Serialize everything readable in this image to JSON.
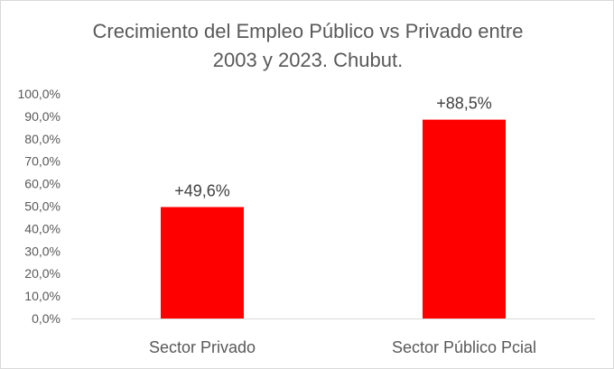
{
  "chart_data": {
    "type": "bar",
    "title_lines": [
      "Crecimiento del Empleo Público vs Privado entre",
      "2003 y 2023. Chubut."
    ],
    "categories": [
      "Sector Privado",
      "Sector Público Pcial"
    ],
    "values": [
      49.6,
      88.5
    ],
    "data_labels": [
      "+49,6%",
      "+88,5%"
    ],
    "ylim": [
      0,
      100
    ],
    "yticks": [
      0,
      10,
      20,
      30,
      40,
      50,
      60,
      70,
      80,
      90,
      100
    ],
    "ytick_labels": [
      "0,0%",
      "10,0%",
      "20,0%",
      "30,0%",
      "40,0%",
      "50,0%",
      "60,0%",
      "70,0%",
      "80,0%",
      "90,0%",
      "100,0%"
    ],
    "grid": false,
    "legend": "none",
    "bar_color": "#ff0000",
    "text_color": "#595959",
    "axis_color": "#d9d9d9"
  }
}
